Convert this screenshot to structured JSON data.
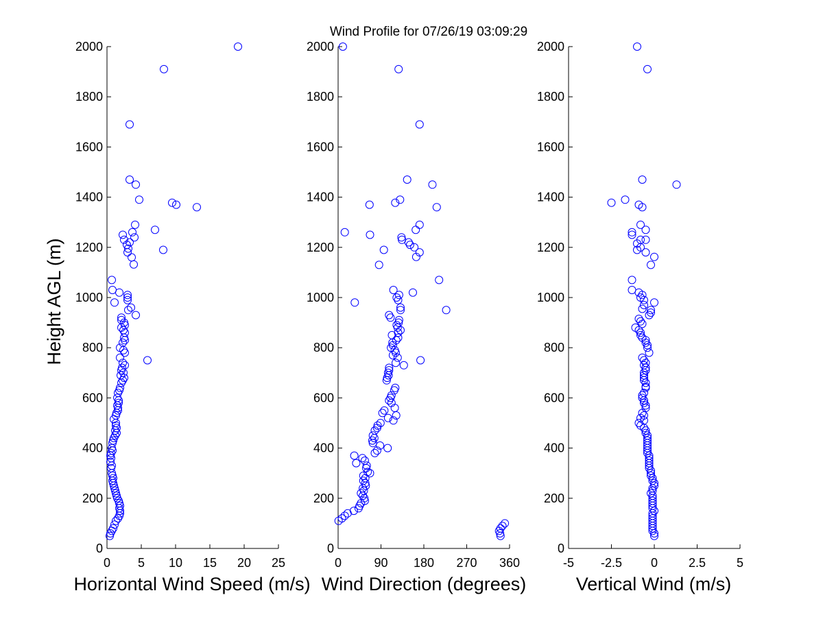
{
  "figure": {
    "title": "Wind Profile for  07/26/19 03:09:29",
    "ylabel": "Height AGL (m)",
    "marker_color": "#0000ff"
  },
  "chart_data": [
    {
      "type": "scatter",
      "xlabel": "Horizontal Wind Speed (m/s)",
      "xlim": [
        0,
        25
      ],
      "ylim": [
        0,
        2000
      ],
      "xticks": [
        0,
        5,
        10,
        15,
        20,
        25
      ],
      "xtick_labels": [
        "0",
        "5",
        "10",
        "15",
        "20",
        "25"
      ],
      "yticks": [
        0,
        200,
        400,
        600,
        800,
        1000,
        1200,
        1400,
        1600,
        1800,
        2000
      ],
      "ytick_labels": [
        "0",
        "200",
        "400",
        "600",
        "800",
        "1000",
        "1200",
        "1400",
        "1600",
        "1800",
        "2000"
      ],
      "grid": false,
      "points": [
        [
          19.1,
          2000
        ],
        [
          8.3,
          1910
        ],
        [
          3.3,
          1690
        ],
        [
          3.3,
          1470
        ],
        [
          4.2,
          1450
        ],
        [
          4.7,
          1390
        ],
        [
          9.5,
          1378
        ],
        [
          10.1,
          1370
        ],
        [
          13.1,
          1360
        ],
        [
          4.1,
          1290
        ],
        [
          7.0,
          1270
        ],
        [
          3.7,
          1260
        ],
        [
          2.3,
          1250
        ],
        [
          4.0,
          1240
        ],
        [
          2.5,
          1230
        ],
        [
          3.3,
          1220
        ],
        [
          2.9,
          1210
        ],
        [
          3.1,
          1195
        ],
        [
          8.2,
          1190
        ],
        [
          3.0,
          1180
        ],
        [
          3.6,
          1160
        ],
        [
          3.9,
          1132
        ],
        [
          0.7,
          1070
        ],
        [
          0.8,
          1030
        ],
        [
          1.8,
          1020
        ],
        [
          3.0,
          1010
        ],
        [
          3.0,
          1000
        ],
        [
          3.0,
          990
        ],
        [
          1.1,
          980
        ],
        [
          3.5,
          960
        ],
        [
          3.1,
          950
        ],
        [
          4.2,
          930
        ],
        [
          2.1,
          920
        ],
        [
          2.1,
          910
        ],
        [
          2.5,
          900
        ],
        [
          2.6,
          890
        ],
        [
          2.1,
          880
        ],
        [
          2.4,
          870
        ],
        [
          2.6,
          860
        ],
        [
          2.5,
          840
        ],
        [
          2.6,
          830
        ],
        [
          2.3,
          820
        ],
        [
          1.9,
          800
        ],
        [
          2.4,
          790
        ],
        [
          2.6,
          780
        ],
        [
          1.9,
          760
        ],
        [
          5.9,
          750
        ],
        [
          2.3,
          740
        ],
        [
          2.6,
          730
        ],
        [
          2.2,
          720
        ],
        [
          2.1,
          710
        ],
        [
          2.4,
          700
        ],
        [
          2.0,
          690
        ],
        [
          2.5,
          680
        ],
        [
          2.3,
          670
        ],
        [
          2.1,
          660
        ],
        [
          1.9,
          640
        ],
        [
          1.8,
          630
        ],
        [
          1.6,
          620
        ],
        [
          1.5,
          600
        ],
        [
          1.7,
          590
        ],
        [
          1.7,
          580
        ],
        [
          1.5,
          570
        ],
        [
          1.6,
          560
        ],
        [
          1.6,
          550
        ],
        [
          1.4,
          540
        ],
        [
          1.3,
          530
        ],
        [
          1.0,
          515
        ],
        [
          1.3,
          500
        ],
        [
          1.3,
          490
        ],
        [
          1.4,
          480
        ],
        [
          1.2,
          470
        ],
        [
          1.4,
          460
        ],
        [
          1.2,
          450
        ],
        [
          1.0,
          440
        ],
        [
          0.9,
          430
        ],
        [
          0.8,
          420
        ],
        [
          0.7,
          400
        ],
        [
          0.8,
          390
        ],
        [
          0.6,
          380
        ],
        [
          0.5,
          370
        ],
        [
          0.6,
          360
        ],
        [
          0.5,
          345
        ],
        [
          0.7,
          330
        ],
        [
          0.6,
          320
        ],
        [
          0.7,
          300
        ],
        [
          0.8,
          290
        ],
        [
          0.9,
          280
        ],
        [
          0.8,
          270
        ],
        [
          0.9,
          260
        ],
        [
          1.0,
          250
        ],
        [
          1.1,
          240
        ],
        [
          1.2,
          230
        ],
        [
          1.3,
          220
        ],
        [
          1.4,
          210
        ],
        [
          1.5,
          200
        ],
        [
          1.7,
          190
        ],
        [
          1.8,
          180
        ],
        [
          1.9,
          170
        ],
        [
          1.8,
          160
        ],
        [
          1.9,
          150
        ],
        [
          1.9,
          140
        ],
        [
          1.8,
          130
        ],
        [
          1.6,
          120
        ],
        [
          1.3,
          110
        ],
        [
          1.1,
          95
        ],
        [
          0.9,
          80
        ],
        [
          0.7,
          70
        ],
        [
          0.5,
          60
        ],
        [
          0.4,
          50
        ]
      ]
    },
    {
      "type": "scatter",
      "xlabel": "Wind Direction (degrees)",
      "xlim": [
        0,
        360
      ],
      "ylim": [
        0,
        2000
      ],
      "xticks": [
        0,
        90,
        180,
        270,
        360
      ],
      "xtick_labels": [
        "0",
        "90",
        "180",
        "270",
        "360"
      ],
      "yticks": [
        0,
        200,
        400,
        600,
        800,
        1000,
        1200,
        1400,
        1600,
        1800,
        2000
      ],
      "ytick_labels": [
        "0",
        "200",
        "400",
        "600",
        "800",
        "1000",
        "1200",
        "1400",
        "1600",
        "1800",
        "2000"
      ],
      "grid": false,
      "points": [
        [
          10,
          2000
        ],
        [
          127,
          1910
        ],
        [
          171,
          1690
        ],
        [
          145,
          1470
        ],
        [
          198,
          1450
        ],
        [
          130,
          1390
        ],
        [
          120,
          1378
        ],
        [
          66,
          1370
        ],
        [
          207,
          1360
        ],
        [
          171,
          1290
        ],
        [
          163,
          1270
        ],
        [
          14,
          1260
        ],
        [
          67,
          1250
        ],
        [
          133,
          1240
        ],
        [
          134,
          1230
        ],
        [
          148,
          1220
        ],
        [
          151,
          1210
        ],
        [
          160,
          1200
        ],
        [
          96,
          1190
        ],
        [
          171,
          1180
        ],
        [
          164,
          1162
        ],
        [
          86,
          1130
        ],
        [
          212,
          1070
        ],
        [
          116,
          1030
        ],
        [
          157,
          1020
        ],
        [
          128,
          1010
        ],
        [
          123,
          1000
        ],
        [
          126,
          990
        ],
        [
          35,
          980
        ],
        [
          131,
          960
        ],
        [
          131,
          950
        ],
        [
          227,
          950
        ],
        [
          107,
          930
        ],
        [
          110,
          920
        ],
        [
          128,
          910
        ],
        [
          127,
          900
        ],
        [
          123,
          890
        ],
        [
          125,
          880
        ],
        [
          131,
          870
        ],
        [
          126,
          860
        ],
        [
          113,
          850
        ],
        [
          126,
          840
        ],
        [
          122,
          830
        ],
        [
          114,
          820
        ],
        [
          115,
          810
        ],
        [
          111,
          800
        ],
        [
          119,
          790
        ],
        [
          121,
          780
        ],
        [
          115,
          770
        ],
        [
          125,
          760
        ],
        [
          173,
          750
        ],
        [
          121,
          740
        ],
        [
          138,
          730
        ],
        [
          107,
          720
        ],
        [
          107,
          710
        ],
        [
          105,
          700
        ],
        [
          106,
          690
        ],
        [
          103,
          680
        ],
        [
          102,
          670
        ],
        [
          120,
          640
        ],
        [
          118,
          630
        ],
        [
          112,
          610
        ],
        [
          110,
          600
        ],
        [
          107,
          590
        ],
        [
          112,
          580
        ],
        [
          119,
          560
        ],
        [
          97,
          550
        ],
        [
          93,
          540
        ],
        [
          122,
          530
        ],
        [
          105,
          520
        ],
        [
          116,
          510
        ],
        [
          89,
          500
        ],
        [
          83,
          490
        ],
        [
          82,
          480
        ],
        [
          77,
          470
        ],
        [
          73,
          450
        ],
        [
          76,
          440
        ],
        [
          72,
          430
        ],
        [
          73,
          420
        ],
        [
          88,
          410
        ],
        [
          104,
          400
        ],
        [
          82,
          390
        ],
        [
          77,
          380
        ],
        [
          34,
          370
        ],
        [
          51,
          360
        ],
        [
          56,
          350
        ],
        [
          38,
          340
        ],
        [
          60,
          330
        ],
        [
          59,
          320
        ],
        [
          62,
          305
        ],
        [
          67,
          300
        ],
        [
          53,
          290
        ],
        [
          57,
          280
        ],
        [
          53,
          270
        ],
        [
          57,
          260
        ],
        [
          58,
          250
        ],
        [
          52,
          240
        ],
        [
          54,
          230
        ],
        [
          48,
          220
        ],
        [
          52,
          210
        ],
        [
          55,
          200
        ],
        [
          56,
          190
        ],
        [
          48,
          180
        ],
        [
          45,
          170
        ],
        [
          43,
          160
        ],
        [
          33,
          150
        ],
        [
          20,
          140
        ],
        [
          14,
          130
        ],
        [
          8,
          120
        ],
        [
          1,
          110
        ],
        [
          350,
          100
        ],
        [
          345,
          90
        ],
        [
          341,
          80
        ],
        [
          338,
          70
        ],
        [
          340,
          60
        ],
        [
          341,
          50
        ]
      ]
    },
    {
      "type": "scatter",
      "xlabel": "Vertical Wind (m/s)",
      "xlim": [
        -5,
        5
      ],
      "ylim": [
        0,
        2000
      ],
      "xticks": [
        -5,
        -2.5,
        0,
        2.5,
        5
      ],
      "xtick_labels": [
        "-5",
        "-2.5",
        "0",
        "2.5",
        "5"
      ],
      "yticks": [
        0,
        200,
        400,
        600,
        800,
        1000,
        1200,
        1400,
        1600,
        1800,
        2000
      ],
      "ytick_labels": [
        "0",
        "200",
        "400",
        "600",
        "800",
        "1000",
        "1200",
        "1400",
        "1600",
        "1800",
        "2000"
      ],
      "grid": false,
      "points": [
        [
          -1.0,
          2000
        ],
        [
          -0.4,
          1910
        ],
        [
          -0.7,
          1470
        ],
        [
          1.3,
          1450
        ],
        [
          -1.7,
          1390
        ],
        [
          -2.5,
          1378
        ],
        [
          -0.9,
          1370
        ],
        [
          -0.7,
          1360
        ],
        [
          -0.8,
          1290
        ],
        [
          -0.5,
          1270
        ],
        [
          -1.3,
          1260
        ],
        [
          -1.3,
          1250
        ],
        [
          -0.8,
          1230
        ],
        [
          -0.5,
          1230
        ],
        [
          -1.0,
          1215
        ],
        [
          -0.8,
          1200
        ],
        [
          -1.0,
          1190
        ],
        [
          -0.5,
          1180
        ],
        [
          0.0,
          1162
        ],
        [
          -0.2,
          1130
        ],
        [
          -1.3,
          1070
        ],
        [
          -1.3,
          1030
        ],
        [
          -0.9,
          1020
        ],
        [
          -0.7,
          1010
        ],
        [
          -0.8,
          1000
        ],
        [
          -0.6,
          990
        ],
        [
          0.0,
          980
        ],
        [
          -0.6,
          970
        ],
        [
          -0.7,
          955
        ],
        [
          -0.2,
          950
        ],
        [
          -0.2,
          940
        ],
        [
          -0.3,
          930
        ],
        [
          -0.9,
          915
        ],
        [
          -0.8,
          905
        ],
        [
          -0.7,
          895
        ],
        [
          -1.1,
          880
        ],
        [
          -0.9,
          870
        ],
        [
          -0.8,
          860
        ],
        [
          -0.8,
          850
        ],
        [
          -0.7,
          840
        ],
        [
          -0.5,
          830
        ],
        [
          -0.5,
          820
        ],
        [
          -0.4,
          810
        ],
        [
          -0.4,
          800
        ],
        [
          -0.3,
          780
        ],
        [
          -0.7,
          760
        ],
        [
          -0.6,
          750
        ],
        [
          -0.5,
          740
        ],
        [
          -0.6,
          730
        ],
        [
          -0.5,
          720
        ],
        [
          -0.5,
          710
        ],
        [
          -0.6,
          700
        ],
        [
          -0.6,
          690
        ],
        [
          -0.6,
          680
        ],
        [
          -0.6,
          670
        ],
        [
          -0.5,
          660
        ],
        [
          -0.5,
          645
        ],
        [
          -0.5,
          640
        ],
        [
          -0.6,
          620
        ],
        [
          -0.7,
          610
        ],
        [
          -0.7,
          600
        ],
        [
          -0.6,
          590
        ],
        [
          -0.6,
          580
        ],
        [
          -0.5,
          570
        ],
        [
          -0.5,
          560
        ],
        [
          -0.7,
          540
        ],
        [
          -0.6,
          530
        ],
        [
          -0.8,
          520
        ],
        [
          -0.6,
          510
        ],
        [
          -0.9,
          500
        ],
        [
          -0.8,
          490
        ],
        [
          -0.6,
          480
        ],
        [
          -0.5,
          470
        ],
        [
          -0.5,
          460
        ],
        [
          -0.4,
          450
        ],
        [
          -0.4,
          440
        ],
        [
          -0.4,
          430
        ],
        [
          -0.4,
          420
        ],
        [
          -0.4,
          410
        ],
        [
          -0.4,
          400
        ],
        [
          -0.4,
          390
        ],
        [
          -0.4,
          380
        ],
        [
          -0.3,
          370
        ],
        [
          -0.3,
          360
        ],
        [
          -0.3,
          350
        ],
        [
          -0.3,
          340
        ],
        [
          -0.3,
          330
        ],
        [
          -0.3,
          320
        ],
        [
          -0.2,
          310
        ],
        [
          -0.2,
          300
        ],
        [
          -0.2,
          290
        ],
        [
          -0.1,
          280
        ],
        [
          -0.1,
          270
        ],
        [
          0.0,
          260
        ],
        [
          0.0,
          250
        ],
        [
          -0.1,
          240
        ],
        [
          -0.1,
          230
        ],
        [
          -0.2,
          220
        ],
        [
          -0.1,
          210
        ],
        [
          -0.1,
          200
        ],
        [
          -0.1,
          190
        ],
        [
          -0.1,
          180
        ],
        [
          -0.1,
          170
        ],
        [
          -0.1,
          160
        ],
        [
          0.0,
          150
        ],
        [
          -0.1,
          140
        ],
        [
          -0.1,
          130
        ],
        [
          -0.1,
          120
        ],
        [
          -0.1,
          110
        ],
        [
          -0.1,
          100
        ],
        [
          -0.1,
          90
        ],
        [
          -0.1,
          80
        ],
        [
          -0.1,
          70
        ],
        [
          0.0,
          60
        ],
        [
          0.0,
          50
        ]
      ]
    }
  ]
}
